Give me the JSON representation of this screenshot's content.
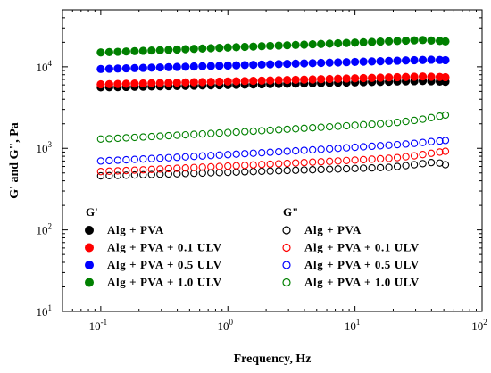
{
  "chart_data": {
    "type": "scatter",
    "xlabel": "Frequency, Hz",
    "ylabel": "G' and G\", Pa",
    "x_scale": "log",
    "y_scale": "log",
    "xlim": [
      0.05,
      100
    ],
    "ylim": [
      10,
      50000
    ],
    "x_ticks": [
      {
        "value": 0.1,
        "base": "10",
        "exp": "-1"
      },
      {
        "value": 1,
        "base": "10",
        "exp": "0"
      },
      {
        "value": 10,
        "base": "10",
        "exp": "1"
      },
      {
        "value": 100,
        "base": "10",
        "exp": "2"
      }
    ],
    "y_ticks": [
      {
        "value": 10,
        "base": "10",
        "exp": "1"
      },
      {
        "value": 100,
        "base": "10",
        "exp": "2"
      },
      {
        "value": 1000,
        "base": "10",
        "exp": "3"
      },
      {
        "value": 10000,
        "base": "10",
        "exp": "4"
      }
    ],
    "grid": false,
    "legend": {
      "placement": "lower-left",
      "groups": [
        {
          "title": "G'",
          "entries": [
            "Alg + PVA",
            "Alg + PVA + 0.1 ULV",
            "Alg + PVA + 0.5 ULV",
            "Alg + PVA + 1.0 ULV"
          ]
        },
        {
          "title": "G\"",
          "entries": [
            "Alg + PVA",
            "Alg + PVA + 0.1 ULV",
            "Alg + PVA + 0.5 ULV",
            "Alg + PVA + 1.0 ULV"
          ]
        }
      ]
    },
    "x": [
      0.1,
      0.1166,
      0.136,
      0.1585,
      0.1848,
      0.2154,
      0.2512,
      0.2929,
      0.3415,
      0.3981,
      0.4642,
      0.5412,
      0.631,
      0.7356,
      0.8577,
      1.0,
      1.166,
      1.36,
      1.585,
      1.848,
      2.154,
      2.512,
      2.929,
      3.415,
      3.981,
      4.642,
      5.412,
      6.31,
      7.356,
      8.577,
      10.0,
      11.66,
      13.6,
      15.85,
      18.48,
      21.54,
      25.12,
      29.29,
      34.15,
      39.81,
      46.42,
      51.5
    ],
    "series": [
      {
        "name": "Alg + PVA",
        "modulus": "G'",
        "color": "#000000",
        "filled": true,
        "values": [
          5600,
          5620,
          5640,
          5660,
          5690,
          5710,
          5740,
          5760,
          5790,
          5810,
          5840,
          5870,
          5900,
          5920,
          5950,
          5980,
          6010,
          6040,
          6070,
          6100,
          6130,
          6160,
          6190,
          6220,
          6250,
          6280,
          6310,
          6340,
          6380,
          6410,
          6440,
          6480,
          6510,
          6540,
          6580,
          6610,
          6640,
          6670,
          6700,
          6650,
          6600,
          6550
        ]
      },
      {
        "name": "Alg + PVA + 0.1 ULV",
        "modulus": "G'",
        "color": "#ff0000",
        "filled": true,
        "values": [
          6100,
          6130,
          6160,
          6190,
          6230,
          6260,
          6290,
          6330,
          6360,
          6400,
          6430,
          6470,
          6500,
          6540,
          6580,
          6610,
          6650,
          6690,
          6730,
          6770,
          6810,
          6850,
          6890,
          6930,
          6970,
          7010,
          7060,
          7100,
          7140,
          7190,
          7230,
          7280,
          7320,
          7370,
          7420,
          7460,
          7510,
          7560,
          7610,
          7560,
          7520,
          7470
        ]
      },
      {
        "name": "Alg + PVA + 0.5 ULV",
        "modulus": "G'",
        "color": "#0000ff",
        "filled": true,
        "values": [
          9400,
          9460,
          9520,
          9580,
          9640,
          9700,
          9770,
          9830,
          9890,
          9960,
          10020,
          10090,
          10160,
          10220,
          10290,
          10360,
          10430,
          10500,
          10570,
          10640,
          10710,
          10780,
          10860,
          10930,
          11010,
          11080,
          11160,
          11230,
          11310,
          11390,
          11470,
          11550,
          11630,
          11710,
          11790,
          11870,
          11960,
          12040,
          12120,
          12210,
          12130,
          12060
        ]
      },
      {
        "name": "Alg + PVA + 1.0 ULV",
        "modulus": "G'",
        "color": "#008000",
        "filled": true,
        "values": [
          15000,
          15140,
          15280,
          15420,
          15570,
          15710,
          15860,
          16010,
          16160,
          16310,
          16460,
          16610,
          16770,
          16920,
          17080,
          17240,
          17400,
          17560,
          17720,
          17890,
          18050,
          18220,
          18390,
          18560,
          18730,
          18910,
          19080,
          19260,
          19440,
          19620,
          19800,
          19990,
          20170,
          20360,
          20550,
          20740,
          20930,
          21130,
          21320,
          21040,
          20760,
          20500
        ]
      },
      {
        "name": "Alg + PVA",
        "modulus": "G\"",
        "color": "#000000",
        "filled": false,
        "values": [
          460,
          463,
          466,
          469,
          472,
          475,
          478,
          482,
          485,
          488,
          492,
          495,
          498,
          502,
          505,
          509,
          512,
          516,
          520,
          523,
          527,
          531,
          535,
          539,
          543,
          547,
          551,
          555,
          559,
          563,
          567,
          571,
          576,
          580,
          585,
          600,
          615,
          630,
          650,
          670,
          660,
          630
        ]
      },
      {
        "name": "Alg + PVA + 0.1 ULV",
        "modulus": "G\"",
        "color": "#ff0000",
        "filled": false,
        "values": [
          520,
          525,
          530,
          535,
          541,
          546,
          552,
          558,
          564,
          570,
          576,
          582,
          588,
          594,
          600,
          607,
          613,
          620,
          627,
          634,
          641,
          648,
          655,
          662,
          670,
          678,
          685,
          693,
          701,
          710,
          718,
          727,
          736,
          745,
          754,
          770,
          790,
          810,
          840,
          870,
          900,
          920
        ]
      },
      {
        "name": "Alg + PVA + 0.5 ULV",
        "modulus": "G\"",
        "color": "#0000ff",
        "filled": false,
        "values": [
          700,
          708,
          716,
          724,
          732,
          741,
          750,
          759,
          768,
          777,
          787,
          797,
          807,
          817,
          827,
          838,
          849,
          860,
          871,
          883,
          895,
          907,
          920,
          932,
          945,
          959,
          972,
          986,
          1000,
          1015,
          1030,
          1045,
          1061,
          1077,
          1093,
          1110,
          1130,
          1150,
          1180,
          1210,
          1230,
          1250
        ]
      },
      {
        "name": "Alg + PVA + 1.0 ULV",
        "modulus": "G\"",
        "color": "#008000",
        "filled": false,
        "values": [
          1300,
          1315,
          1330,
          1346,
          1362,
          1378,
          1395,
          1412,
          1429,
          1447,
          1465,
          1484,
          1502,
          1522,
          1541,
          1561,
          1582,
          1603,
          1624,
          1646,
          1668,
          1691,
          1714,
          1738,
          1762,
          1787,
          1812,
          1838,
          1864,
          1891,
          1918,
          1946,
          1975,
          2004,
          2034,
          2080,
          2140,
          2200,
          2280,
          2380,
          2480,
          2560
        ]
      }
    ]
  }
}
